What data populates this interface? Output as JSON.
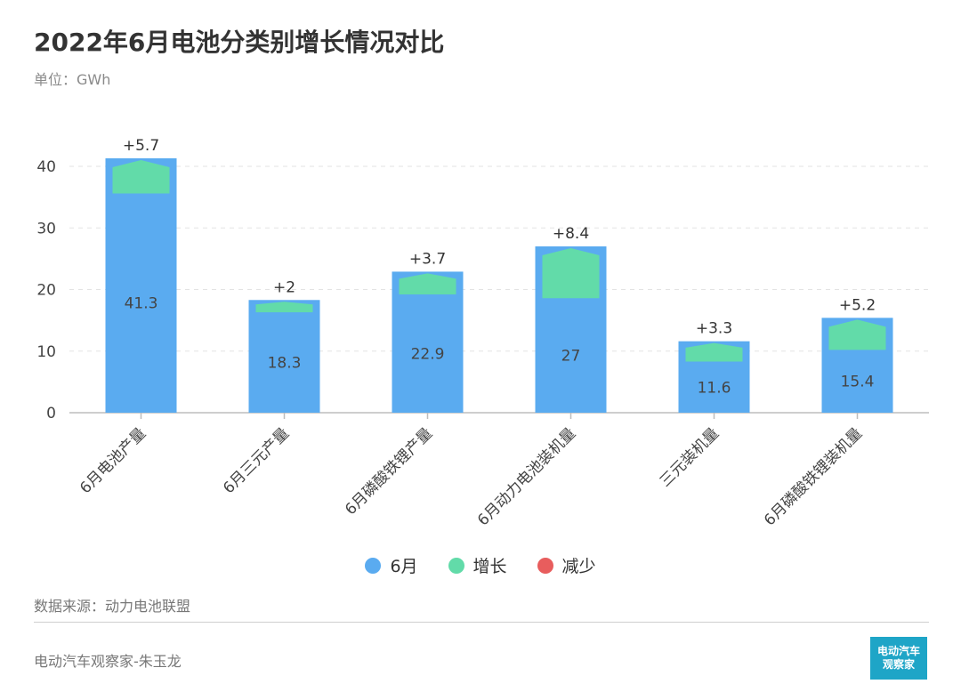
{
  "title": "2022年6月电池分类别增长情况对比",
  "unit": "单位：GWh",
  "legend": [
    {
      "label": "6月",
      "color": "#5aabf0"
    },
    {
      "label": "增长",
      "color": "#62dba9"
    },
    {
      "label": "减少",
      "color": "#e85d5d"
    }
  ],
  "source": "数据来源：动力电池联盟",
  "footer": "电动汽车观察家-朱玉龙",
  "logo": {
    "line1": "电动汽车",
    "line2": "观察家"
  },
  "chart_data": {
    "type": "bar",
    "categories": [
      "6月电池产量",
      "6月三元产量",
      "6月磷酸铁锂产量",
      "6月动力电池装机量",
      "三元装机量",
      "6月磷酸铁锂装机量"
    ],
    "series": [
      {
        "name": "6月",
        "values": [
          41.3,
          18.3,
          22.9,
          27,
          11.6,
          15.4
        ],
        "color": "#5aabf0"
      },
      {
        "name": "增长",
        "values": [
          5.7,
          2,
          3.7,
          8.4,
          3.3,
          5.2
        ],
        "color": "#62dba9"
      }
    ],
    "value_labels": [
      "41.3",
      "18.3",
      "22.9",
      "27",
      "11.6",
      "15.4"
    ],
    "growth_labels": [
      "+5.7",
      "+2",
      "+3.7",
      "+8.4",
      "+3.3",
      "+5.2"
    ],
    "yticks": [
      0,
      10,
      20,
      30,
      40
    ],
    "ylim": [
      0,
      40
    ],
    "grid": true
  }
}
